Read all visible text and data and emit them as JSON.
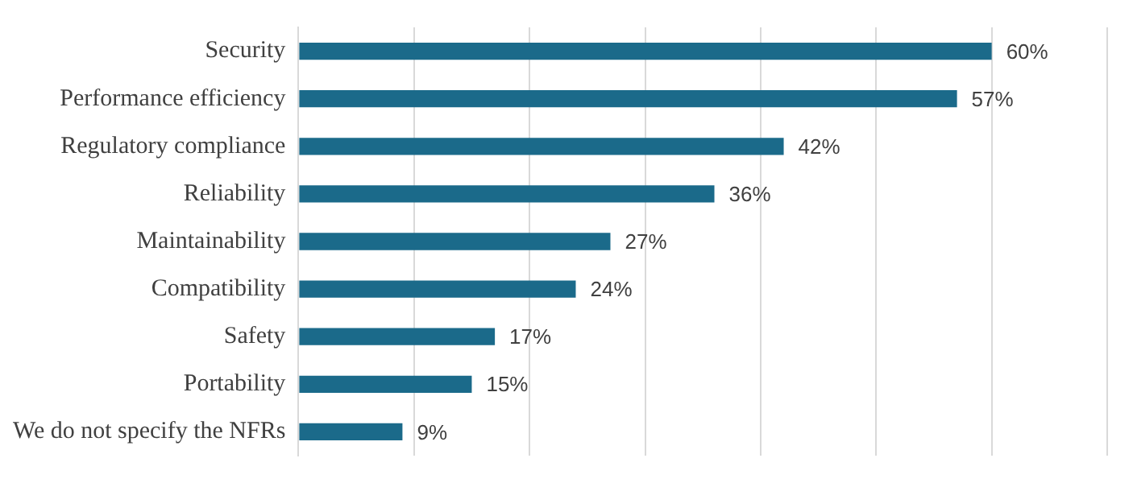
{
  "chart_data": {
    "type": "bar",
    "orientation": "horizontal",
    "categories": [
      "Security",
      "Performance efficiency",
      "Regulatory compliance",
      "Reliability",
      "Maintainability",
      "Compatibility",
      "Safety",
      "Portability",
      "We do not specify the NFRs"
    ],
    "values": [
      60,
      57,
      42,
      36,
      27,
      24,
      17,
      15,
      9
    ],
    "color": "#1b6a8a",
    "value_labels": [
      "60%",
      "57%",
      "42%",
      "36%",
      "27%",
      "24%",
      "17%",
      "15%",
      "9%"
    ],
    "xlim": [
      0,
      70
    ],
    "xticks": [
      {
        "value": 0,
        "label": null
      },
      {
        "value": 10,
        "label": null
      },
      {
        "value": 20,
        "label": null
      },
      {
        "value": 30,
        "label": null
      },
      {
        "value": 40,
        "label": null
      },
      {
        "value": 50,
        "label": null
      },
      {
        "value": 60,
        "label": null
      },
      {
        "value": 70,
        "label": null
      }
    ],
    "grid": "x",
    "tick_labels": "y",
    "legend": false
  }
}
